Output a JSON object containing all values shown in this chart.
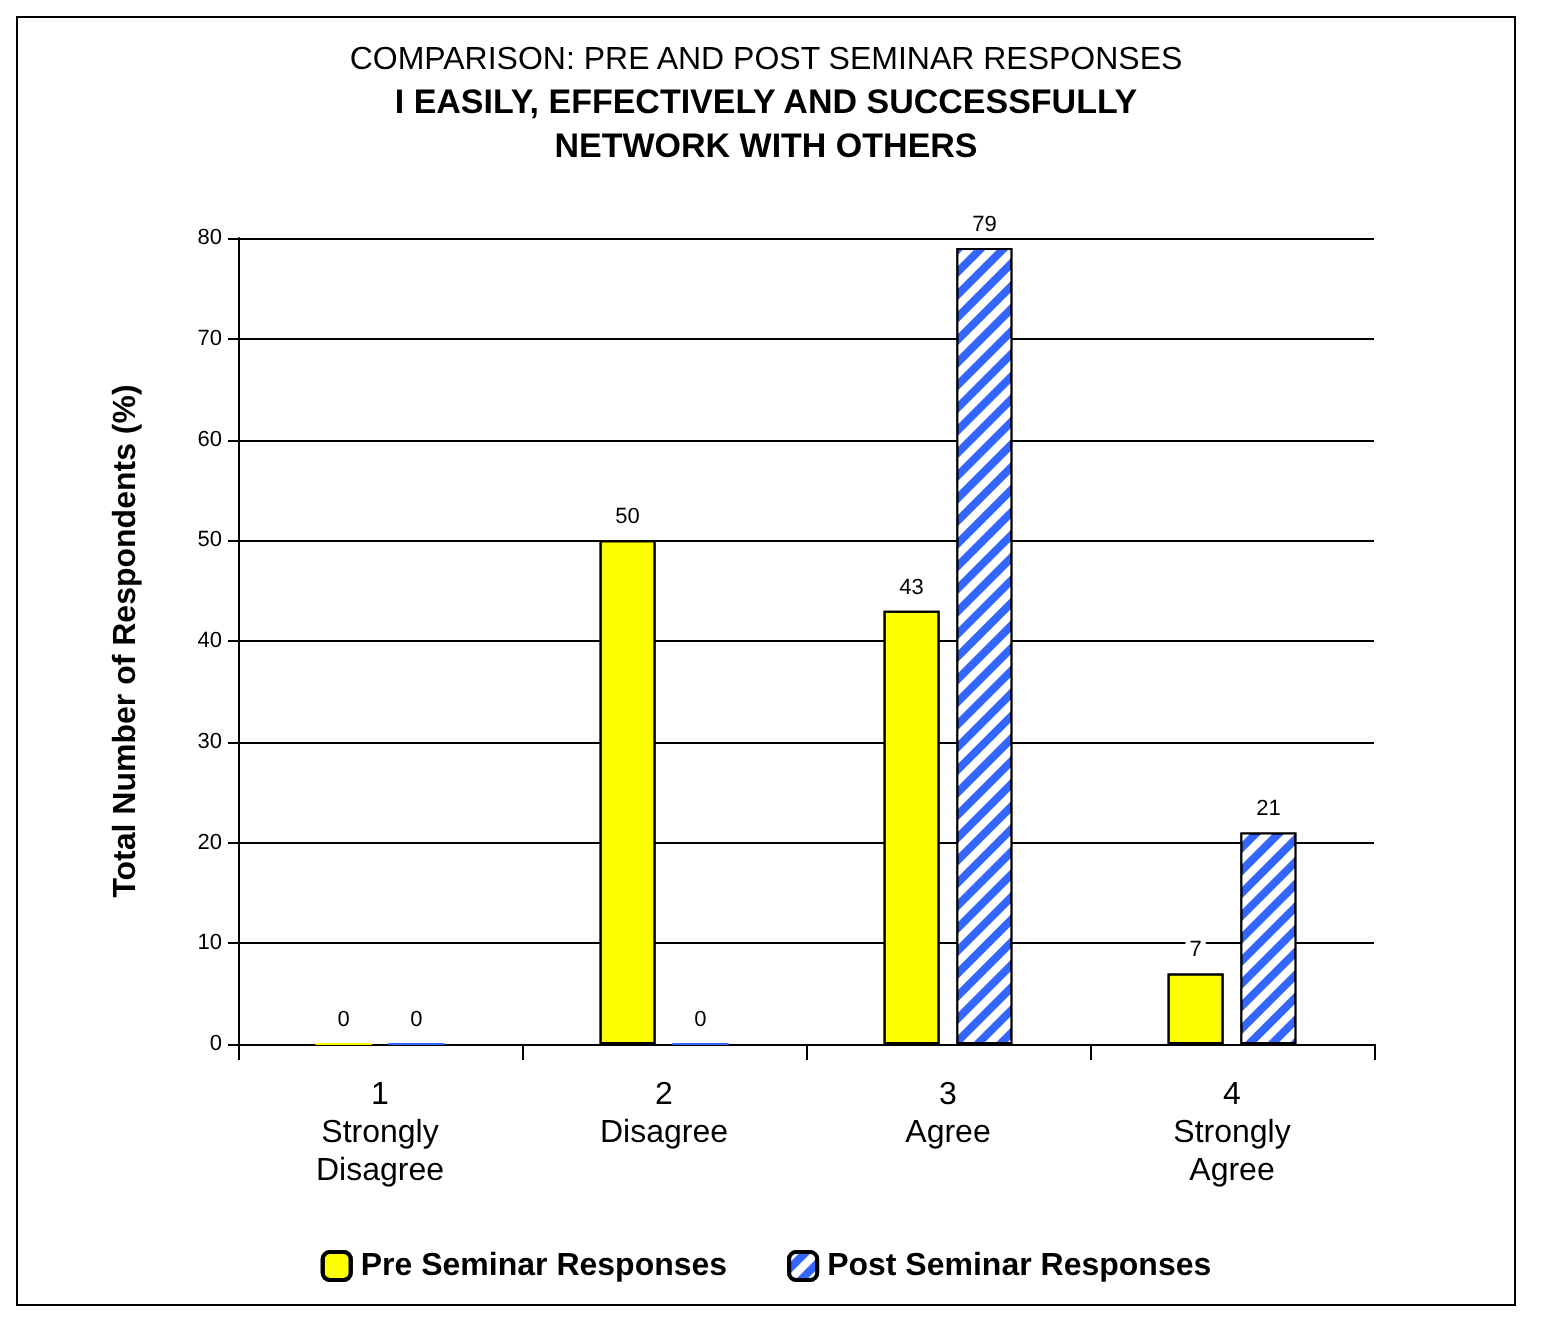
{
  "chart_data": {
    "type": "bar",
    "title": "COMPARISON: PRE AND POST SEMINAR RESPONSES",
    "subtitle": "I EASILY, EFFECTIVELY AND SUCCESSFULLY\nNETWORK WITH OTHERS",
    "ylabel": "Total Number of Respondents (%)",
    "categories": [
      "1\nStrongly\nDisagree",
      "2\nDisagree",
      "3\nAgree",
      "4\nStrongly\nAgree"
    ],
    "series": [
      {
        "name": "Pre Seminar Responses",
        "color": "#ffff00",
        "values": [
          0,
          50,
          43,
          7
        ]
      },
      {
        "name": "Post Seminar Responses",
        "color": "#3366ff",
        "values": [
          0,
          0,
          79,
          21
        ]
      }
    ],
    "ylim": [
      0,
      80
    ],
    "yticks": [
      0,
      10,
      20,
      30,
      40,
      50,
      60,
      70,
      80
    ],
    "grid": "y",
    "legend": "bottom",
    "data_labels": true
  }
}
